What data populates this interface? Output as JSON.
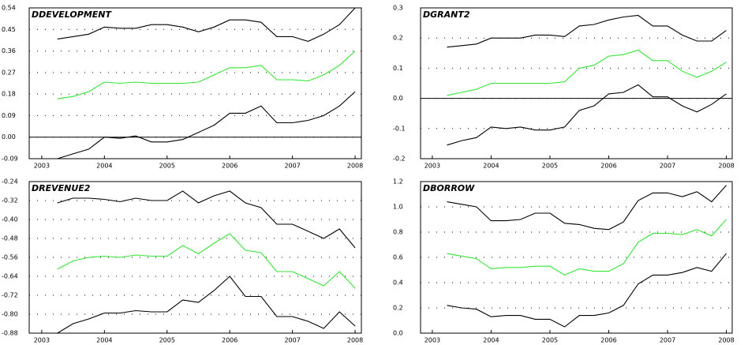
{
  "chart_data": [
    {
      "type": "line",
      "title": "DDEVELOPMENT",
      "x": [
        2003.25,
        2003.5,
        2003.75,
        2004,
        2004.25,
        2004.5,
        2004.75,
        2005,
        2005.25,
        2005.5,
        2005.75,
        2006,
        2006.25,
        2006.5,
        2006.75,
        2007,
        2007.25,
        2007.5,
        2007.75,
        2008
      ],
      "series": [
        {
          "color": "#000000",
          "values": [
            0.41,
            0.42,
            0.43,
            0.46,
            0.455,
            0.455,
            0.47,
            0.47,
            0.46,
            0.44,
            0.46,
            0.49,
            0.49,
            0.48,
            0.42,
            0.42,
            0.4,
            0.43,
            0.47,
            0.54
          ]
        },
        {
          "color": "#33e633",
          "values": [
            0.16,
            0.17,
            0.19,
            0.23,
            0.225,
            0.23,
            0.225,
            0.225,
            0.225,
            0.23,
            0.26,
            0.29,
            0.29,
            0.3,
            0.24,
            0.24,
            0.235,
            0.26,
            0.3,
            0.36
          ]
        },
        {
          "color": "#000000",
          "values": [
            -0.09,
            -0.07,
            -0.05,
            0.0,
            -0.005,
            0.005,
            -0.02,
            -0.02,
            -0.01,
            0.02,
            0.05,
            0.1,
            0.1,
            0.13,
            0.06,
            0.06,
            0.07,
            0.09,
            0.13,
            0.19
          ]
        }
      ],
      "xlim": [
        2002.8,
        2008.1
      ],
      "xticks": [
        2003,
        2004,
        2005,
        2006,
        2007,
        2008
      ],
      "ylim": [
        -0.09,
        0.54
      ],
      "yticks": [
        -0.09,
        {
          "value": 0,
          "label": "0.00"
        },
        0.09,
        0.18,
        0.27,
        0.36,
        0.45,
        0.54
      ],
      "grid": true
    },
    {
      "type": "line",
      "title": "DGRANT2",
      "x": [
        2003.25,
        2003.5,
        2003.75,
        2004,
        2004.25,
        2004.5,
        2004.75,
        2005,
        2005.25,
        2005.5,
        2005.75,
        2006,
        2006.25,
        2006.5,
        2006.75,
        2007,
        2007.25,
        2007.5,
        2007.75,
        2008
      ],
      "series": [
        {
          "color": "#000000",
          "values": [
            0.17,
            0.175,
            0.18,
            0.2,
            0.2,
            0.2,
            0.21,
            0.21,
            0.205,
            0.24,
            0.245,
            0.26,
            0.27,
            0.275,
            0.24,
            0.24,
            0.21,
            0.19,
            0.19,
            0.225
          ]
        },
        {
          "color": "#33e633",
          "values": [
            0.01,
            0.02,
            0.03,
            0.05,
            0.05,
            0.05,
            0.05,
            0.05,
            0.055,
            0.1,
            0.11,
            0.14,
            0.145,
            0.16,
            0.125,
            0.125,
            0.09,
            0.07,
            0.09,
            0.12
          ]
        },
        {
          "color": "#000000",
          "values": [
            -0.155,
            -0.14,
            -0.13,
            -0.095,
            -0.1,
            -0.095,
            -0.105,
            -0.105,
            -0.095,
            -0.04,
            -0.025,
            0.015,
            0.02,
            0.045,
            0.005,
            0.005,
            -0.025,
            -0.045,
            -0.02,
            0.015
          ]
        }
      ],
      "xlim": [
        2002.8,
        2008.1
      ],
      "xticks": [
        2003,
        2004,
        2005,
        2006,
        2007,
        2008
      ],
      "ylim": [
        -0.2,
        0.3
      ],
      "yticks": [
        -0.2,
        -0.1,
        {
          "value": 0,
          "label": "0.0"
        },
        0.1,
        0.2,
        0.3
      ],
      "grid": true
    },
    {
      "type": "line",
      "title": "DREVENUE2",
      "x": [
        2003.25,
        2003.5,
        2003.75,
        2004,
        2004.25,
        2004.5,
        2004.75,
        2005,
        2005.25,
        2005.5,
        2005.75,
        2006,
        2006.25,
        2006.5,
        2006.75,
        2007,
        2007.25,
        2007.5,
        2007.75,
        2008
      ],
      "series": [
        {
          "color": "#000000",
          "values": [
            -0.33,
            -0.31,
            -0.31,
            -0.315,
            -0.325,
            -0.31,
            -0.32,
            -0.32,
            -0.28,
            -0.33,
            -0.3,
            -0.28,
            -0.33,
            -0.35,
            -0.42,
            -0.42,
            -0.45,
            -0.48,
            -0.44,
            -0.52
          ]
        },
        {
          "color": "#33e633",
          "values": [
            -0.61,
            -0.575,
            -0.56,
            -0.555,
            -0.56,
            -0.55,
            -0.555,
            -0.555,
            -0.51,
            -0.545,
            -0.5,
            -0.46,
            -0.53,
            -0.54,
            -0.62,
            -0.62,
            -0.65,
            -0.68,
            -0.62,
            -0.69
          ]
        },
        {
          "color": "#000000",
          "values": [
            -0.88,
            -0.84,
            -0.82,
            -0.795,
            -0.795,
            -0.785,
            -0.79,
            -0.79,
            -0.74,
            -0.75,
            -0.7,
            -0.64,
            -0.725,
            -0.725,
            -0.81,
            -0.81,
            -0.83,
            -0.86,
            -0.79,
            -0.85
          ]
        }
      ],
      "xlim": [
        2002.8,
        2008.1
      ],
      "xticks": [
        2003,
        2004,
        2005,
        2006,
        2007,
        2008
      ],
      "ylim": [
        -0.88,
        -0.24
      ],
      "yticks": [
        -0.88,
        {
          "value": -0.8,
          "label": "-0.80"
        },
        -0.72,
        -0.64,
        -0.56,
        -0.48,
        {
          "value": -0.4,
          "label": "-0.40"
        },
        -0.32,
        -0.24
      ],
      "grid": true
    },
    {
      "type": "line",
      "title": "DBORROW",
      "x": [
        2003.25,
        2003.5,
        2003.75,
        2004,
        2004.25,
        2004.5,
        2004.75,
        2005,
        2005.25,
        2005.5,
        2005.75,
        2006,
        2006.25,
        2006.5,
        2006.75,
        2007,
        2007.25,
        2007.5,
        2007.75,
        2008
      ],
      "series": [
        {
          "color": "#000000",
          "values": [
            1.04,
            1.02,
            1.0,
            0.89,
            0.89,
            0.9,
            0.95,
            0.95,
            0.87,
            0.86,
            0.83,
            0.82,
            0.88,
            1.05,
            1.11,
            1.11,
            1.08,
            1.12,
            1.04,
            1.17
          ]
        },
        {
          "color": "#33e633",
          "values": [
            0.63,
            0.61,
            0.59,
            0.51,
            0.52,
            0.52,
            0.53,
            0.53,
            0.46,
            0.51,
            0.49,
            0.49,
            0.55,
            0.72,
            0.79,
            0.79,
            0.78,
            0.82,
            0.77,
            0.9
          ]
        },
        {
          "color": "#000000",
          "values": [
            0.22,
            0.2,
            0.19,
            0.13,
            0.14,
            0.14,
            0.11,
            0.11,
            0.05,
            0.14,
            0.14,
            0.16,
            0.22,
            0.39,
            0.46,
            0.46,
            0.48,
            0.52,
            0.49,
            0.63
          ]
        }
      ],
      "xlim": [
        2002.8,
        2008.1
      ],
      "xticks": [
        2003,
        2004,
        2005,
        2006,
        2007,
        2008
      ],
      "ylim": [
        0,
        1.2
      ],
      "yticks": [
        {
          "value": 0,
          "label": "0.0"
        },
        0.2,
        0.4,
        0.6,
        0.8,
        {
          "value": 1,
          "label": "1.0"
        },
        1.2
      ],
      "grid": true
    }
  ]
}
